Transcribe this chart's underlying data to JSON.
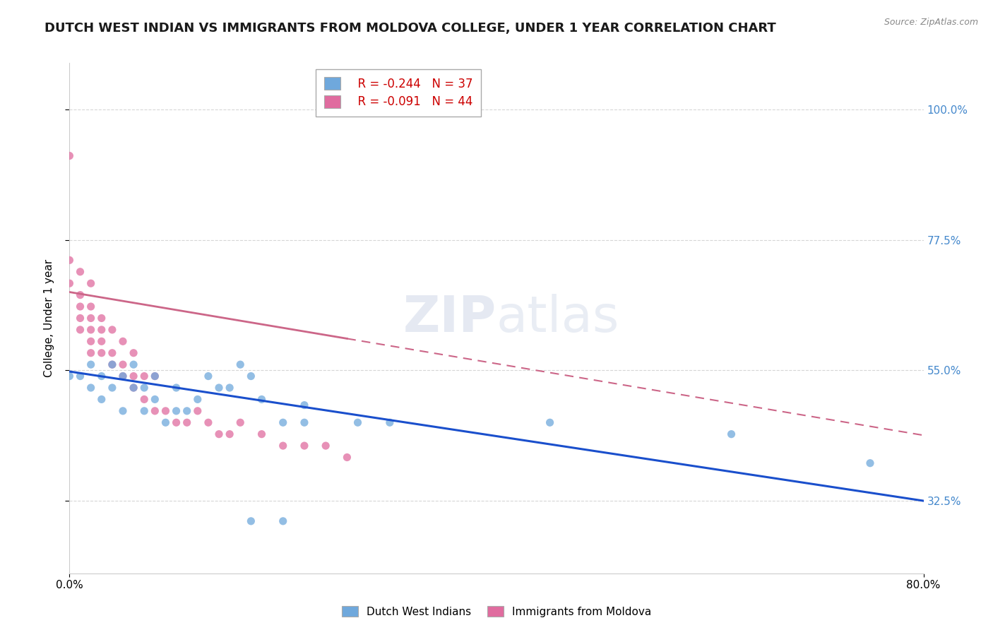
{
  "title": "DUTCH WEST INDIAN VS IMMIGRANTS FROM MOLDOVA COLLEGE, UNDER 1 YEAR CORRELATION CHART",
  "source_text": "Source: ZipAtlas.com",
  "ylabel": "College, Under 1 year",
  "ytick_labels": [
    "32.5%",
    "55.0%",
    "77.5%",
    "100.0%"
  ],
  "ytick_values": [
    0.325,
    0.55,
    0.775,
    1.0
  ],
  "xlim": [
    0.0,
    0.8
  ],
  "ylim": [
    0.2,
    1.08
  ],
  "legend_blue_label": "Dutch West Indians",
  "legend_pink_label": "Immigrants from Moldova",
  "legend_blue_R": "R = -0.244",
  "legend_blue_N": "N = 37",
  "legend_pink_R": "R = -0.091",
  "legend_pink_N": "N = 44",
  "blue_color": "#6fa8dc",
  "pink_color": "#e06c9f",
  "blue_line_color": "#1a4fcc",
  "pink_line_color": "#cc6688",
  "watermark_zip": "ZIP",
  "watermark_atlas": "atlas",
  "blue_scatter_x": [
    0.0,
    0.01,
    0.02,
    0.02,
    0.03,
    0.03,
    0.04,
    0.04,
    0.05,
    0.05,
    0.06,
    0.06,
    0.07,
    0.07,
    0.08,
    0.08,
    0.09,
    0.1,
    0.1,
    0.11,
    0.12,
    0.13,
    0.14,
    0.15,
    0.16,
    0.17,
    0.18,
    0.2,
    0.22,
    0.17,
    0.2,
    0.22,
    0.27,
    0.3,
    0.45,
    0.62,
    0.75
  ],
  "blue_scatter_y": [
    0.54,
    0.54,
    0.52,
    0.56,
    0.5,
    0.54,
    0.52,
    0.56,
    0.48,
    0.54,
    0.52,
    0.56,
    0.48,
    0.52,
    0.5,
    0.54,
    0.46,
    0.48,
    0.52,
    0.48,
    0.5,
    0.54,
    0.52,
    0.52,
    0.56,
    0.54,
    0.5,
    0.46,
    0.49,
    0.29,
    0.29,
    0.46,
    0.46,
    0.46,
    0.46,
    0.44,
    0.39
  ],
  "pink_scatter_x": [
    0.0,
    0.0,
    0.0,
    0.01,
    0.01,
    0.01,
    0.01,
    0.01,
    0.02,
    0.02,
    0.02,
    0.02,
    0.02,
    0.02,
    0.03,
    0.03,
    0.03,
    0.03,
    0.04,
    0.04,
    0.04,
    0.05,
    0.05,
    0.05,
    0.06,
    0.06,
    0.06,
    0.07,
    0.07,
    0.08,
    0.08,
    0.09,
    0.1,
    0.11,
    0.12,
    0.13,
    0.14,
    0.15,
    0.16,
    0.18,
    0.2,
    0.22,
    0.24,
    0.26
  ],
  "pink_scatter_y": [
    0.7,
    0.74,
    0.92,
    0.62,
    0.64,
    0.66,
    0.68,
    0.72,
    0.58,
    0.6,
    0.62,
    0.64,
    0.66,
    0.7,
    0.58,
    0.6,
    0.62,
    0.64,
    0.56,
    0.58,
    0.62,
    0.54,
    0.56,
    0.6,
    0.52,
    0.54,
    0.58,
    0.5,
    0.54,
    0.48,
    0.54,
    0.48,
    0.46,
    0.46,
    0.48,
    0.46,
    0.44,
    0.44,
    0.46,
    0.44,
    0.42,
    0.42,
    0.42,
    0.4
  ],
  "blue_line_y_start": 0.548,
  "blue_line_y_end": 0.325,
  "pink_line_y_start": 0.685,
  "pink_line_y_end": 0.438,
  "grid_color": "#cccccc",
  "background_color": "#ffffff",
  "title_color": "#1a1a1a",
  "right_axis_color": "#4488cc"
}
